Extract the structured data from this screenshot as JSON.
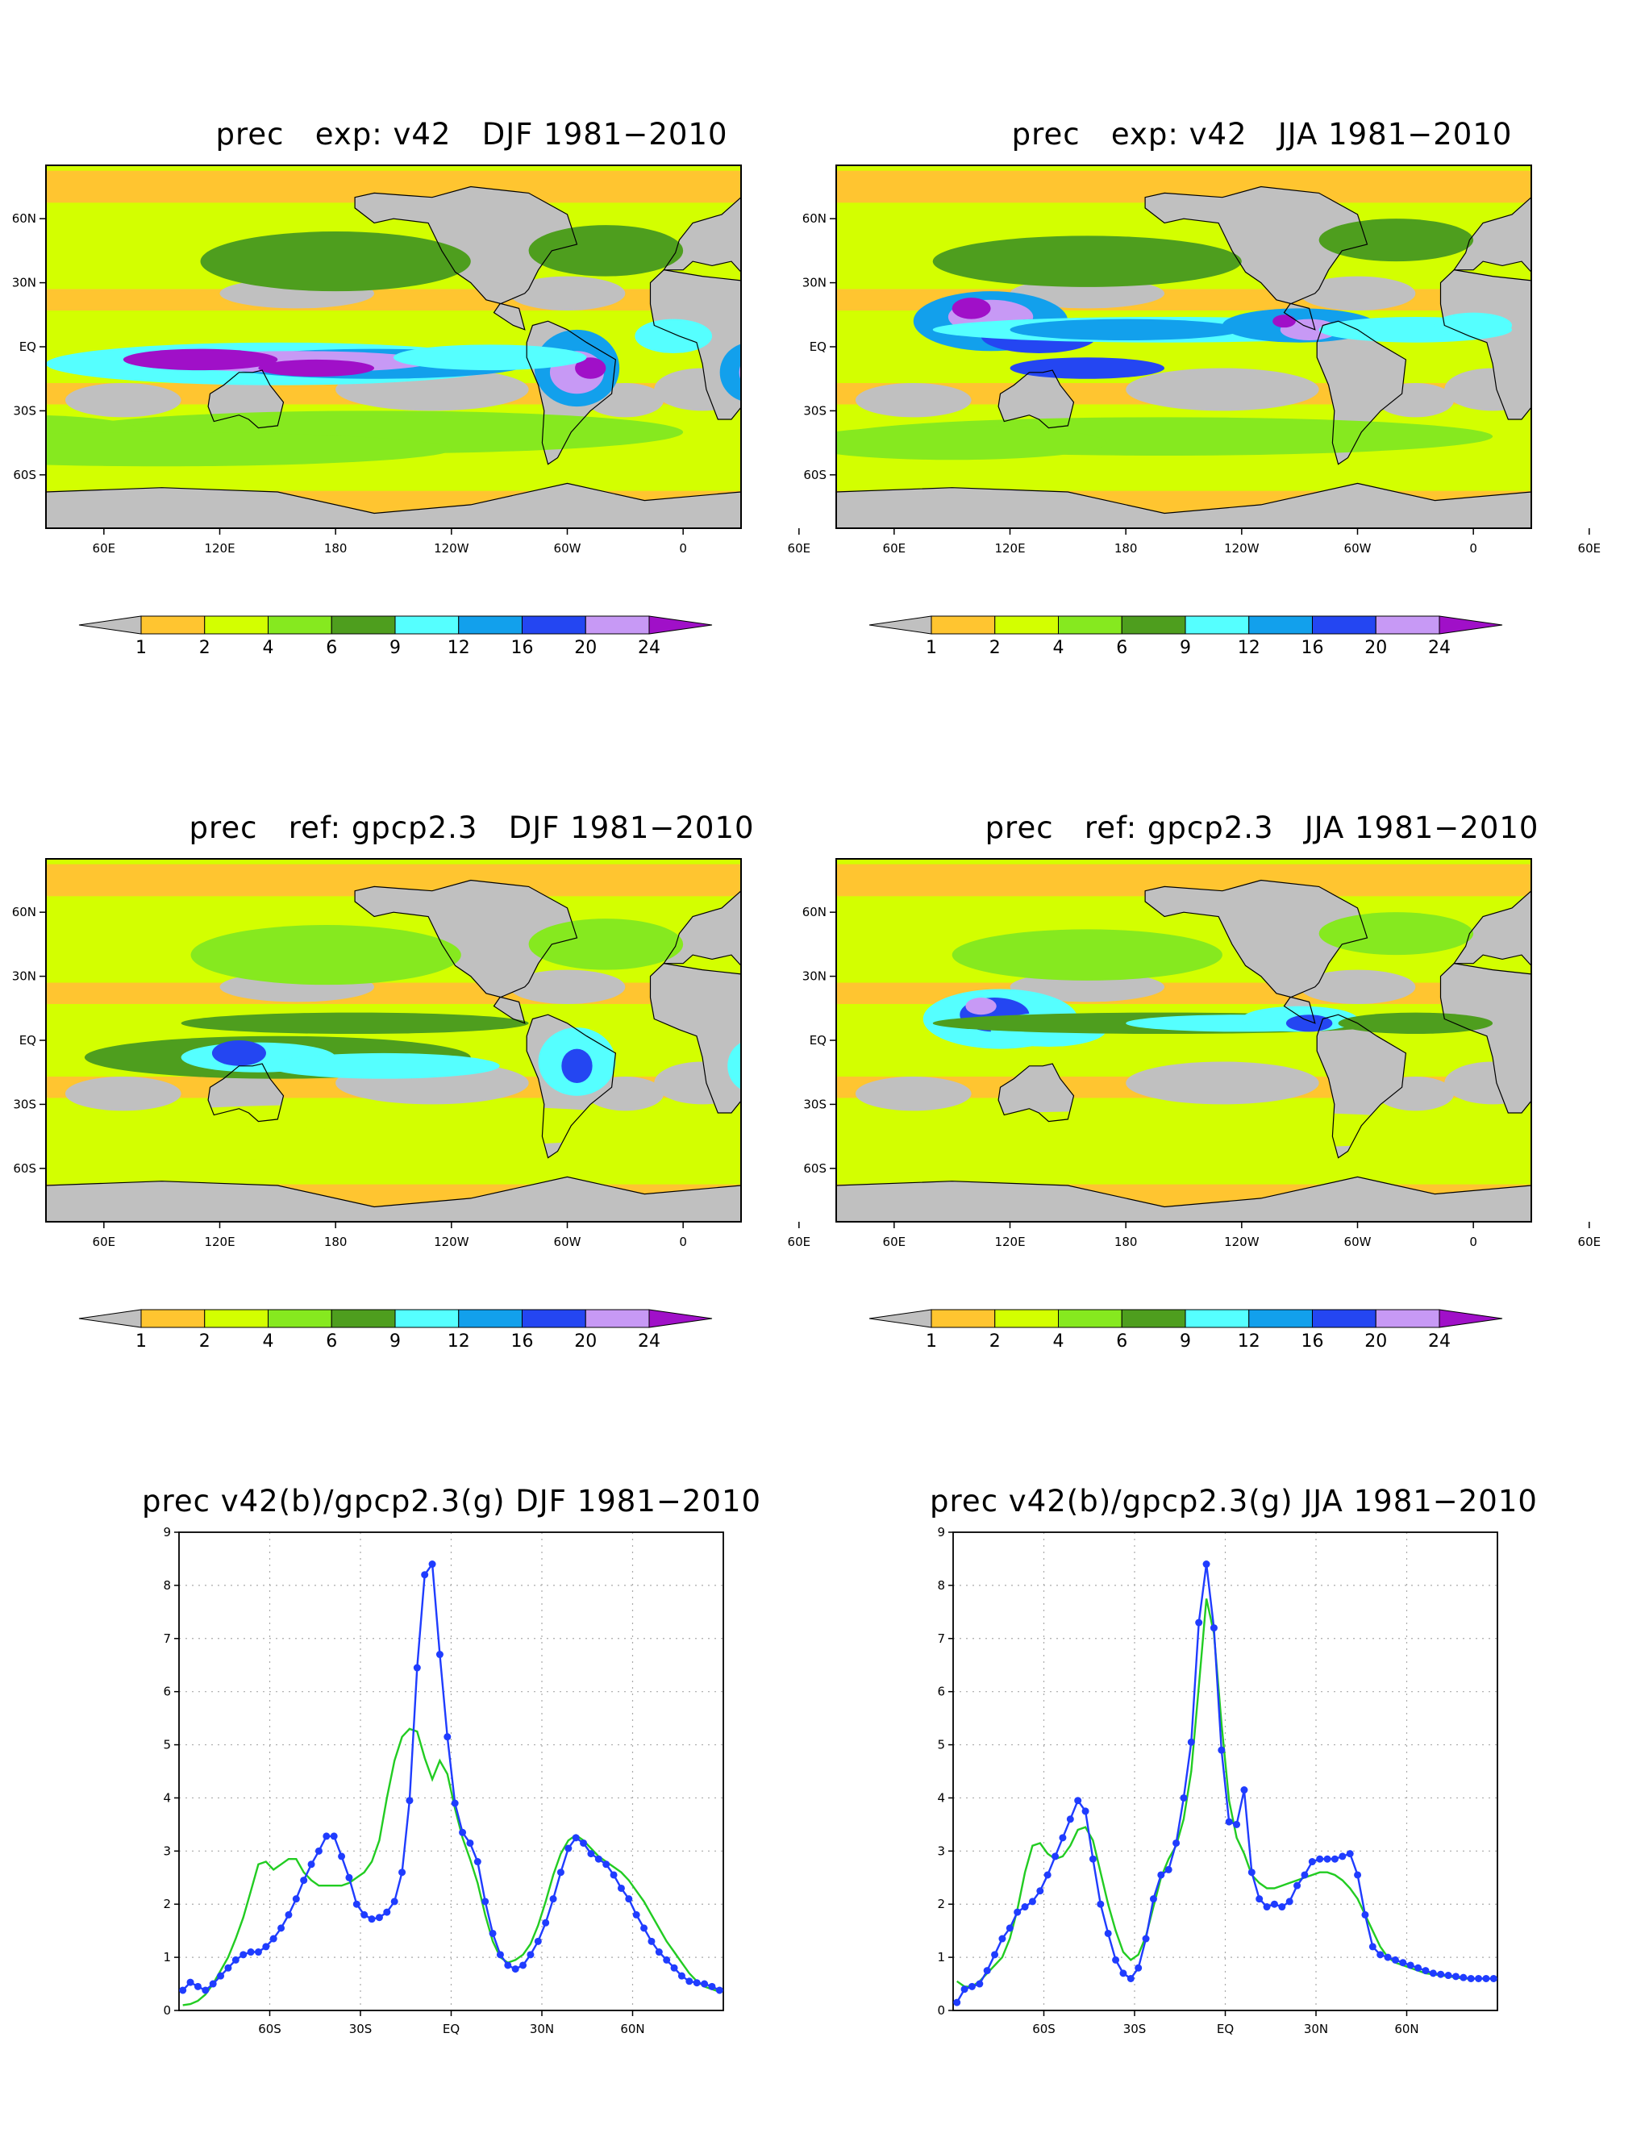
{
  "colors": {
    "land": "#c0c0c0",
    "c1_2": "#ffc530",
    "c2_4": "#d3ff00",
    "c4_6": "#86e91f",
    "c6_9": "#4e9e1e",
    "c9_12": "#55ffff",
    "c12_16": "#12a0ec",
    "c16_20": "#2446f2",
    "c20_24": "#c799f5",
    "c24p": "#a010c8",
    "exp_line": "#1f3cff",
    "ref_line": "#22cc22",
    "grid": "#aaaaaa"
  },
  "maps": [
    {
      "title": "prec   exp: v42   DJF 1981−2010"
    },
    {
      "title": "prec   exp: v42   JJA 1981−2010"
    },
    {
      "title": "prec   ref: gpcp2.3   DJF 1981−2010"
    },
    {
      "title": "prec   ref: gpcp2.3   JJA 1981−2010"
    }
  ],
  "map_axes": {
    "lon_ticks": [
      "60E",
      "120E",
      "180",
      "120W",
      "60W",
      "0",
      "60E"
    ],
    "lat_ticks": [
      "60N",
      "30N",
      "EQ",
      "30S",
      "60S"
    ]
  },
  "colorbar": {
    "levels": [
      "1",
      "2",
      "4",
      "6",
      "9",
      "12",
      "16",
      "20",
      "24"
    ]
  },
  "chart_data": [
    {
      "type": "line",
      "title": "prec v42(b)/gpcp2.3(g) DJF 1981−2010",
      "ylim": [
        0,
        9
      ],
      "xlim": [
        -90,
        90
      ],
      "y_ticks": [
        "0",
        "1",
        "2",
        "3",
        "4",
        "5",
        "6",
        "7",
        "8",
        "9"
      ],
      "x_ticks": [
        "60S",
        "30S",
        "EQ",
        "30N",
        "60N"
      ],
      "grid": true,
      "series": [
        {
          "color": "#1f3cff",
          "markers": true,
          "x": [
            -88.75,
            -86.25,
            -83.75,
            -81.25,
            -78.75,
            -76.25,
            -73.75,
            -71.25,
            -68.75,
            -66.25,
            -63.75,
            -61.25,
            -58.75,
            -56.25,
            -53.75,
            -51.25,
            -48.75,
            -46.25,
            -43.75,
            -41.25,
            -38.75,
            -36.25,
            -33.75,
            -31.25,
            -28.75,
            -26.25,
            -23.75,
            -21.25,
            -18.75,
            -16.25,
            -13.75,
            -11.25,
            -8.75,
            -6.25,
            -3.75,
            -1.25,
            1.25,
            3.75,
            6.25,
            8.75,
            11.25,
            13.75,
            16.25,
            18.75,
            21.25,
            23.75,
            26.25,
            28.75,
            31.25,
            33.75,
            36.25,
            38.75,
            41.25,
            43.75,
            46.25,
            48.75,
            51.25,
            53.75,
            56.25,
            58.75,
            61.25,
            63.75,
            66.25,
            68.75,
            71.25,
            73.75,
            76.25,
            78.75,
            81.25,
            83.75,
            86.25,
            88.75
          ],
          "y": [
            0.38,
            0.53,
            0.45,
            0.38,
            0.5,
            0.65,
            0.8,
            0.95,
            1.05,
            1.1,
            1.1,
            1.2,
            1.35,
            1.55,
            1.8,
            2.1,
            2.45,
            2.75,
            3.0,
            3.28,
            3.28,
            2.9,
            2.5,
            2.0,
            1.8,
            1.72,
            1.75,
            1.85,
            2.05,
            2.6,
            3.95,
            6.45,
            8.2,
            8.4,
            6.7,
            5.15,
            3.9,
            3.35,
            3.15,
            2.8,
            2.05,
            1.45,
            1.05,
            0.85,
            0.78,
            0.85,
            1.05,
            1.3,
            1.65,
            2.1,
            2.6,
            3.05,
            3.25,
            3.15,
            2.95,
            2.85,
            2.75,
            2.55,
            2.3,
            2.1,
            1.8,
            1.55,
            1.3,
            1.1,
            0.95,
            0.8,
            0.65,
            0.55,
            0.52,
            0.5,
            0.45,
            0.38
          ]
        },
        {
          "color": "#22cc22",
          "markers": false,
          "x": [
            -88.75,
            -86.25,
            -83.75,
            -81.25,
            -78.75,
            -76.25,
            -73.75,
            -71.25,
            -68.75,
            -66.25,
            -63.75,
            -61.25,
            -58.75,
            -56.25,
            -53.75,
            -51.25,
            -48.75,
            -46.25,
            -43.75,
            -41.25,
            -38.75,
            -36.25,
            -33.75,
            -31.25,
            -28.75,
            -26.25,
            -23.75,
            -21.25,
            -18.75,
            -16.25,
            -13.75,
            -11.25,
            -8.75,
            -6.25,
            -3.75,
            -1.25,
            1.25,
            3.75,
            6.25,
            8.75,
            11.25,
            13.75,
            16.25,
            18.75,
            21.25,
            23.75,
            26.25,
            28.75,
            31.25,
            33.75,
            36.25,
            38.75,
            41.25,
            43.75,
            46.25,
            48.75,
            51.25,
            53.75,
            56.25,
            58.75,
            61.25,
            63.75,
            66.25,
            68.75,
            71.25,
            73.75,
            76.25,
            78.75,
            81.25,
            83.75,
            86.25,
            88.75
          ],
          "y": [
            0.1,
            0.12,
            0.18,
            0.3,
            0.5,
            0.75,
            1.0,
            1.35,
            1.75,
            2.25,
            2.75,
            2.8,
            2.65,
            2.75,
            2.85,
            2.85,
            2.6,
            2.45,
            2.35,
            2.35,
            2.35,
            2.35,
            2.4,
            2.5,
            2.6,
            2.8,
            3.2,
            4.0,
            4.7,
            5.15,
            5.3,
            5.25,
            4.75,
            4.35,
            4.7,
            4.45,
            3.8,
            3.25,
            2.85,
            2.4,
            1.8,
            1.3,
            1.0,
            0.9,
            0.95,
            1.05,
            1.25,
            1.6,
            2.05,
            2.55,
            2.95,
            3.2,
            3.3,
            3.2,
            3.05,
            2.9,
            2.8,
            2.7,
            2.6,
            2.45,
            2.25,
            2.05,
            1.8,
            1.55,
            1.3,
            1.1,
            0.9,
            0.7,
            0.55,
            0.45,
            0.4,
            0.35
          ]
        }
      ]
    },
    {
      "type": "line",
      "title": "prec v42(b)/gpcp2.3(g) JJA 1981−2010",
      "ylim": [
        0,
        9
      ],
      "xlim": [
        -90,
        90
      ],
      "y_ticks": [
        "0",
        "1",
        "2",
        "3",
        "4",
        "5",
        "6",
        "7",
        "8",
        "9"
      ],
      "x_ticks": [
        "60S",
        "30S",
        "EQ",
        "30N",
        "60N"
      ],
      "grid": true,
      "series": [
        {
          "color": "#1f3cff",
          "markers": true,
          "x": [
            -88.75,
            -86.25,
            -83.75,
            -81.25,
            -78.75,
            -76.25,
            -73.75,
            -71.25,
            -68.75,
            -66.25,
            -63.75,
            -61.25,
            -58.75,
            -56.25,
            -53.75,
            -51.25,
            -48.75,
            -46.25,
            -43.75,
            -41.25,
            -38.75,
            -36.25,
            -33.75,
            -31.25,
            -28.75,
            -26.25,
            -23.75,
            -21.25,
            -18.75,
            -16.25,
            -13.75,
            -11.25,
            -8.75,
            -6.25,
            -3.75,
            -1.25,
            1.25,
            3.75,
            6.25,
            8.75,
            11.25,
            13.75,
            16.25,
            18.75,
            21.25,
            23.75,
            26.25,
            28.75,
            31.25,
            33.75,
            36.25,
            38.75,
            41.25,
            43.75,
            46.25,
            48.75,
            51.25,
            53.75,
            56.25,
            58.75,
            61.25,
            63.75,
            66.25,
            68.75,
            71.25,
            73.75,
            76.25,
            78.75,
            81.25,
            83.75,
            86.25,
            88.75
          ],
          "y": [
            0.15,
            0.4,
            0.45,
            0.5,
            0.75,
            1.05,
            1.35,
            1.55,
            1.85,
            1.95,
            2.05,
            2.25,
            2.55,
            2.9,
            3.25,
            3.6,
            3.95,
            3.75,
            2.85,
            2.0,
            1.45,
            0.95,
            0.7,
            0.6,
            0.8,
            1.35,
            2.1,
            2.55,
            2.65,
            3.15,
            4.0,
            5.05,
            7.3,
            8.4,
            7.2,
            4.9,
            3.55,
            3.5,
            4.15,
            2.6,
            2.1,
            1.95,
            2.0,
            1.95,
            2.05,
            2.35,
            2.55,
            2.8,
            2.85,
            2.85,
            2.85,
            2.9,
            2.95,
            2.55,
            1.8,
            1.2,
            1.05,
            1.0,
            0.95,
            0.9,
            0.85,
            0.8,
            0.75,
            0.7,
            0.68,
            0.66,
            0.64,
            0.62,
            0.6,
            0.6,
            0.6,
            0.6
          ]
        },
        {
          "color": "#22cc22",
          "markers": false,
          "x": [
            -88.75,
            -86.25,
            -83.75,
            -81.25,
            -78.75,
            -76.25,
            -73.75,
            -71.25,
            -68.75,
            -66.25,
            -63.75,
            -61.25,
            -58.75,
            -56.25,
            -53.75,
            -51.25,
            -48.75,
            -46.25,
            -43.75,
            -41.25,
            -38.75,
            -36.25,
            -33.75,
            -31.25,
            -28.75,
            -26.25,
            -23.75,
            -21.25,
            -18.75,
            -16.25,
            -13.75,
            -11.25,
            -8.75,
            -6.25,
            -3.75,
            -1.25,
            1.25,
            3.75,
            6.25,
            8.75,
            11.25,
            13.75,
            16.25,
            18.75,
            21.25,
            23.75,
            26.25,
            28.75,
            31.25,
            33.75,
            36.25,
            38.75,
            41.25,
            43.75,
            46.25,
            48.75,
            51.25,
            53.75,
            56.25,
            58.75,
            61.25,
            63.75,
            66.25,
            68.75,
            71.25,
            73.75,
            76.25,
            78.75,
            81.25,
            83.75,
            86.25,
            88.75
          ],
          "y": [
            0.55,
            0.45,
            0.45,
            0.55,
            0.7,
            0.85,
            1.0,
            1.35,
            1.9,
            2.6,
            3.1,
            3.15,
            2.95,
            2.85,
            2.9,
            3.1,
            3.4,
            3.45,
            3.2,
            2.6,
            2.0,
            1.5,
            1.1,
            0.95,
            1.05,
            1.4,
            1.95,
            2.5,
            2.85,
            3.1,
            3.6,
            4.5,
            6.1,
            7.75,
            7.1,
            5.4,
            3.95,
            3.25,
            2.95,
            2.55,
            2.4,
            2.3,
            2.3,
            2.35,
            2.4,
            2.45,
            2.5,
            2.55,
            2.6,
            2.6,
            2.55,
            2.45,
            2.3,
            2.1,
            1.8,
            1.5,
            1.2,
            1.0,
            0.9,
            0.85,
            0.8,
            0.75,
            0.7,
            0.68,
            0.66,
            0.64,
            0.62,
            0.6,
            0.6,
            0.6,
            0.6,
            0.6
          ]
        }
      ]
    }
  ]
}
